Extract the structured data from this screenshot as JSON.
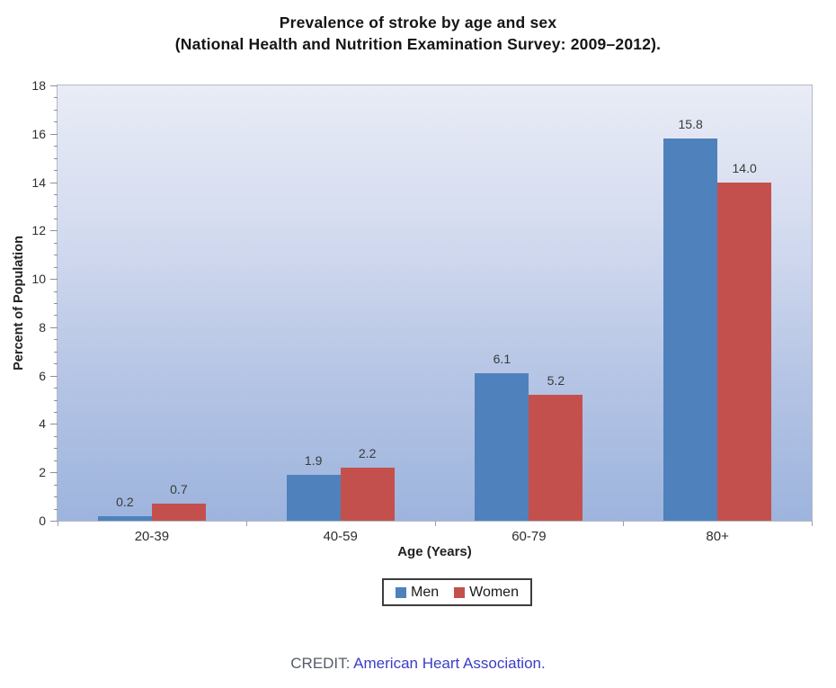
{
  "title": {
    "line1": "Prevalence of stroke by age and sex",
    "line2": "(National Health and Nutrition Examination Survey: 2009–2012)."
  },
  "chart_data": {
    "type": "bar",
    "categories": [
      "20-39",
      "40-59",
      "60-79",
      "80+"
    ],
    "series": [
      {
        "name": "Men",
        "color": "#4f81bd",
        "values": [
          0.2,
          1.9,
          6.1,
          15.8
        ]
      },
      {
        "name": "Women",
        "color": "#c4504d",
        "values": [
          0.7,
          2.2,
          5.2,
          14.0
        ]
      }
    ],
    "value_labels": {
      "Men": [
        "0.2",
        "1.9",
        "6.1",
        "15.8"
      ],
      "Women": [
        "0.7",
        "2.2",
        "5.2",
        "14.0"
      ]
    },
    "xlabel": "Age (Years)",
    "ylabel": "Percent of Population",
    "ylim": [
      0,
      18
    ],
    "y_major_step": 2,
    "y_minor_step": 0.5,
    "y_tick_labels": [
      "0",
      "2",
      "4",
      "6",
      "8",
      "10",
      "12",
      "14",
      "16",
      "18"
    ],
    "grid": false,
    "legend_position": "bottom",
    "plot_background_gradient": [
      "#e9ecf6",
      "#9db4dd"
    ]
  },
  "credit": {
    "prefix": "CREDIT: ",
    "link": "American Heart Association."
  }
}
